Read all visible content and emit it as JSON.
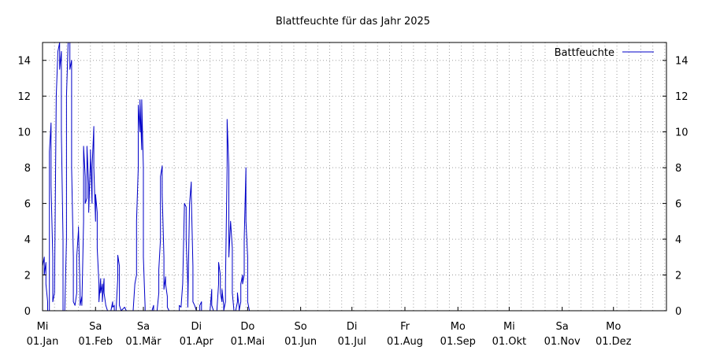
{
  "chart_data": {
    "type": "line",
    "title": "Blattfeuchte für das Jahr 2025",
    "xlabel": "",
    "ylabel": "",
    "ylim": [
      0,
      15
    ],
    "y_ticks": [
      0,
      2,
      4,
      6,
      8,
      10,
      12,
      14
    ],
    "xlim": [
      "2025-01-01",
      "2025-12-31"
    ],
    "x_ticks": [
      {
        "date": "2025-01-01",
        "weekday": "Mi",
        "label": "01.Jan"
      },
      {
        "date": "2025-02-01",
        "weekday": "Sa",
        "label": "01.Feb"
      },
      {
        "date": "2025-03-01",
        "weekday": "Sa",
        "label": "01.Mär"
      },
      {
        "date": "2025-04-01",
        "weekday": "Di",
        "label": "01.Apr"
      },
      {
        "date": "2025-05-01",
        "weekday": "Do",
        "label": "01.Mai"
      },
      {
        "date": "2025-06-01",
        "weekday": "So",
        "label": "01.Jun"
      },
      {
        "date": "2025-07-01",
        "weekday": "Di",
        "label": "01.Jul"
      },
      {
        "date": "2025-08-01",
        "weekday": "Fr",
        "label": "01.Aug"
      },
      {
        "date": "2025-09-01",
        "weekday": "Mo",
        "label": "01.Sep"
      },
      {
        "date": "2025-10-01",
        "weekday": "Mi",
        "label": "01.Okt"
      },
      {
        "date": "2025-11-01",
        "weekday": "Sa",
        "label": "01.Nov"
      },
      {
        "date": "2025-12-01",
        "weekday": "Mo",
        "label": "01.Dez"
      }
    ],
    "grid": true,
    "legend_position": "top-right",
    "series": [
      {
        "name": "Battfeuchte",
        "color": "#0000c8",
        "points": [
          [
            "2025-01-01",
            0
          ],
          [
            "2025-01-01",
            2.5
          ],
          [
            "2025-01-02",
            3
          ],
          [
            "2025-01-02",
            2
          ],
          [
            "2025-01-03",
            2.7
          ],
          [
            "2025-01-03",
            1.5
          ],
          [
            "2025-01-04",
            0.5
          ],
          [
            "2025-01-04",
            0
          ],
          [
            "2025-01-05",
            0
          ],
          [
            "2025-01-05",
            8.9
          ],
          [
            "2025-01-06",
            10.5
          ],
          [
            "2025-01-06",
            7
          ],
          [
            "2025-01-07",
            3
          ],
          [
            "2025-01-07",
            0.5
          ],
          [
            "2025-01-08",
            1
          ],
          [
            "2025-01-09",
            12
          ],
          [
            "2025-01-10",
            14.5
          ],
          [
            "2025-01-11",
            15
          ],
          [
            "2025-01-11",
            13.5
          ],
          [
            "2025-01-12",
            14.5
          ],
          [
            "2025-01-12",
            10
          ],
          [
            "2025-01-13",
            4
          ],
          [
            "2025-01-13",
            0
          ],
          [
            "2025-01-14",
            0
          ],
          [
            "2025-01-15",
            4
          ],
          [
            "2025-01-15",
            12
          ],
          [
            "2025-01-16",
            15
          ],
          [
            "2025-01-17",
            15
          ],
          [
            "2025-01-17",
            13.5
          ],
          [
            "2025-01-18",
            14
          ],
          [
            "2025-01-18",
            8
          ],
          [
            "2025-01-19",
            3
          ],
          [
            "2025-01-19",
            0.5
          ],
          [
            "2025-01-20",
            0.3
          ],
          [
            "2025-01-21",
            1
          ],
          [
            "2025-01-21",
            3
          ],
          [
            "2025-01-22",
            4.5
          ],
          [
            "2025-01-22",
            4.7
          ],
          [
            "2025-01-23",
            1
          ],
          [
            "2025-01-23",
            0.3
          ],
          [
            "2025-01-24",
            0.8
          ],
          [
            "2025-01-24",
            0.3
          ],
          [
            "2025-01-25",
            5
          ],
          [
            "2025-01-25",
            9.2
          ],
          [
            "2025-01-26",
            7.5
          ],
          [
            "2025-01-26",
            6
          ],
          [
            "2025-01-27",
            6.3
          ],
          [
            "2025-01-27",
            9.2
          ],
          [
            "2025-01-28",
            7
          ],
          [
            "2025-01-28",
            5.5
          ],
          [
            "2025-01-29",
            8.5
          ],
          [
            "2025-01-29",
            9
          ],
          [
            "2025-01-30",
            6
          ],
          [
            "2025-01-30",
            8
          ],
          [
            "2025-01-31",
            10.3
          ],
          [
            "2025-01-31",
            8
          ],
          [
            "2025-02-01",
            5
          ],
          [
            "2025-02-01",
            6.5
          ],
          [
            "2025-02-02",
            5.5
          ],
          [
            "2025-02-02",
            3.5
          ],
          [
            "2025-02-03",
            1.5
          ],
          [
            "2025-02-03",
            0.5
          ],
          [
            "2025-02-04",
            1.8
          ],
          [
            "2025-02-04",
            1
          ],
          [
            "2025-02-05",
            1.5
          ],
          [
            "2025-02-05",
            0.5
          ],
          [
            "2025-02-06",
            1.8
          ],
          [
            "2025-02-06",
            1
          ],
          [
            "2025-02-07",
            0.3
          ],
          [
            "2025-02-08",
            0
          ],
          [
            "2025-02-10",
            0
          ],
          [
            "2025-02-11",
            0.5
          ],
          [
            "2025-02-11",
            0.2
          ],
          [
            "2025-02-12",
            0.3
          ],
          [
            "2025-02-12",
            0
          ],
          [
            "2025-02-13",
            0
          ],
          [
            "2025-02-14",
            1.8
          ],
          [
            "2025-02-14",
            3.1
          ],
          [
            "2025-02-15",
            2.5
          ],
          [
            "2025-02-15",
            0.3
          ],
          [
            "2025-02-16",
            0
          ],
          [
            "2025-02-18",
            0.2
          ],
          [
            "2025-02-19",
            0
          ],
          [
            "2025-02-23",
            0
          ],
          [
            "2025-02-24",
            1.5
          ],
          [
            "2025-02-25",
            2
          ],
          [
            "2025-02-25",
            5
          ],
          [
            "2025-02-26",
            8
          ],
          [
            "2025-02-26",
            11.5
          ],
          [
            "2025-02-27",
            10
          ],
          [
            "2025-02-27",
            11.8
          ],
          [
            "2025-02-28",
            9
          ],
          [
            "2025-02-28",
            11.8
          ],
          [
            "2025-03-01",
            8
          ],
          [
            "2025-03-01",
            3
          ],
          [
            "2025-03-02",
            0.2
          ],
          [
            "2025-03-02",
            0
          ],
          [
            "2025-03-06",
            0
          ],
          [
            "2025-03-07",
            0.3
          ],
          [
            "2025-03-07",
            0
          ],
          [
            "2025-03-09",
            0
          ],
          [
            "2025-03-10",
            1
          ],
          [
            "2025-03-10",
            2.3
          ],
          [
            "2025-03-11",
            4
          ],
          [
            "2025-03-11",
            7.5
          ],
          [
            "2025-03-12",
            8.1
          ],
          [
            "2025-03-12",
            6.5
          ],
          [
            "2025-03-13",
            3
          ],
          [
            "2025-03-13",
            1.2
          ],
          [
            "2025-03-14",
            1.9
          ],
          [
            "2025-03-14",
            1.5
          ],
          [
            "2025-03-15",
            0.8
          ],
          [
            "2025-03-15",
            0.2
          ],
          [
            "2025-03-16",
            0
          ],
          [
            "2025-03-22",
            0
          ],
          [
            "2025-03-22",
            0.3
          ],
          [
            "2025-03-23",
            0.2
          ],
          [
            "2025-03-24",
            1.5
          ],
          [
            "2025-03-25",
            5.9
          ],
          [
            "2025-03-25",
            6
          ],
          [
            "2025-03-26",
            5.8
          ],
          [
            "2025-03-26",
            4
          ],
          [
            "2025-03-27",
            1.5
          ],
          [
            "2025-03-27",
            0.2
          ],
          [
            "2025-03-28",
            6
          ],
          [
            "2025-03-29",
            7.2
          ],
          [
            "2025-03-29",
            6.5
          ],
          [
            "2025-03-30",
            2.5
          ],
          [
            "2025-03-30",
            0.5
          ],
          [
            "2025-03-31",
            0.3
          ],
          [
            "2025-04-01",
            0
          ],
          [
            "2025-04-03",
            0
          ],
          [
            "2025-04-03",
            0.3
          ],
          [
            "2025-04-04",
            0.5
          ],
          [
            "2025-04-04",
            0
          ],
          [
            "2025-04-09",
            0
          ],
          [
            "2025-04-10",
            1.2
          ],
          [
            "2025-04-10",
            0.3
          ],
          [
            "2025-04-11",
            0
          ],
          [
            "2025-04-13",
            0
          ],
          [
            "2025-04-14",
            1.5
          ],
          [
            "2025-04-14",
            2.7
          ],
          [
            "2025-04-15",
            2
          ],
          [
            "2025-04-15",
            1
          ],
          [
            "2025-04-16",
            0.5
          ],
          [
            "2025-04-16",
            1.2
          ],
          [
            "2025-04-17",
            0.3
          ],
          [
            "2025-04-17",
            0
          ],
          [
            "2025-04-18",
            0.5
          ],
          [
            "2025-04-18",
            1.5
          ],
          [
            "2025-04-19",
            8
          ],
          [
            "2025-04-19",
            10.7
          ],
          [
            "2025-04-20",
            8
          ],
          [
            "2025-04-20",
            3
          ],
          [
            "2025-04-21",
            5
          ],
          [
            "2025-04-21",
            5
          ],
          [
            "2025-04-22",
            3.5
          ],
          [
            "2025-04-22",
            1
          ],
          [
            "2025-04-23",
            0
          ],
          [
            "2025-04-24",
            0
          ],
          [
            "2025-04-25",
            0.5
          ],
          [
            "2025-04-25",
            1
          ],
          [
            "2025-04-26",
            0.2
          ],
          [
            "2025-04-26",
            0
          ],
          [
            "2025-04-27",
            0.5
          ],
          [
            "2025-04-27",
            1.5
          ],
          [
            "2025-04-28",
            2
          ],
          [
            "2025-04-28",
            1.5
          ],
          [
            "2025-04-29",
            2
          ],
          [
            "2025-04-29",
            4
          ],
          [
            "2025-04-30",
            8
          ],
          [
            "2025-04-30",
            5
          ],
          [
            "2025-05-01",
            3
          ],
          [
            "2025-05-01",
            0.5
          ],
          [
            "2025-05-02",
            0
          ]
        ]
      }
    ]
  }
}
